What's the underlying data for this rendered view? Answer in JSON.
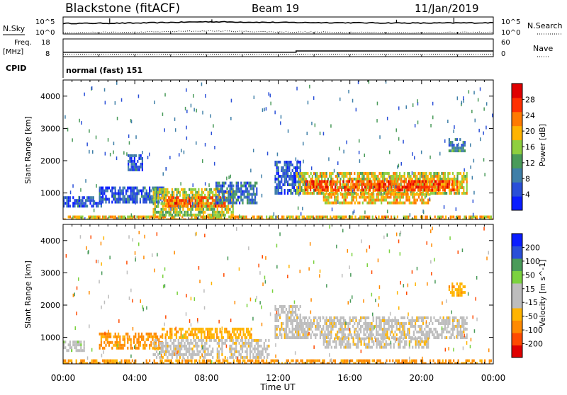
{
  "header": {
    "station": "Blackstone (fitACF)",
    "beam": "Beam 19",
    "date": "11/Jan/2019"
  },
  "top_panels": {
    "nsky_label": "N.Sky",
    "nsearch_label": "N.Search",
    "noise_ticks_left": [
      "10^5",
      "10^0"
    ],
    "noise_ticks_right": [
      "10^5",
      "10^0"
    ],
    "freq_label": "Freq.",
    "freq_unit": "[MHz]",
    "freq_ticks": [
      "18",
      "8"
    ],
    "nave_label": "Nave",
    "nave_ticks": [
      "60",
      "0"
    ],
    "cpid_label": "CPID",
    "cpid_value": "normal (fast) 151"
  },
  "colors": {
    "power_scale": [
      "#0a1dff",
      "#2a4fd8",
      "#3f7fa8",
      "#4a9b5a",
      "#8fcf3f",
      "#ffb400",
      "#ff7a00",
      "#ff3000",
      "#e00000"
    ],
    "velocity_scale": [
      "#e00000",
      "#ff4a00",
      "#ff8a00",
      "#ffb400",
      "#bdbdbd",
      "#bdbdbd",
      "#7bd23f",
      "#4a9b5a",
      "#2a4fd8",
      "#0a1dff"
    ]
  },
  "chart_data": [
    {
      "type": "line",
      "title": "",
      "series": [
        {
          "name": "N.Sky",
          "style": "solid"
        },
        {
          "name": "N.Search",
          "style": "dotted"
        }
      ],
      "x": [
        "00:00",
        "04:00",
        "08:00",
        "12:00",
        "16:00",
        "20:00",
        "00:00"
      ],
      "ylim_log10": [
        0,
        5
      ],
      "y_solid_log10": [
        3.1,
        3.2,
        3.6,
        3.4,
        3.3,
        3.2,
        3.3
      ],
      "y_dotted_log10": [
        0.4,
        0.5,
        0.9,
        0.6,
        0.5,
        0.4,
        0.5
      ]
    },
    {
      "type": "line",
      "series": [
        {
          "name": "Freq.",
          "style": "solid"
        },
        {
          "name": "Nave",
          "style": "dotted"
        }
      ],
      "freq_ylim": [
        8,
        18
      ],
      "nave_ylim": [
        0,
        60
      ],
      "freq_steps": [
        {
          "t": 0,
          "v": 10.5
        },
        {
          "t": 13.0,
          "v": 11.2
        },
        {
          "t": 24,
          "v": 11.2
        }
      ],
      "nave_value": 8
    },
    {
      "type": "heatmap",
      "ylabel": "Slant Range [km]",
      "colorbar_label": "Power [dB]",
      "colorbar_ticks": [
        "28",
        "24",
        "20",
        "16",
        "12",
        "8",
        "4"
      ],
      "y_ticks": [
        "4000",
        "3000",
        "2000",
        "1000"
      ],
      "ylim_km": [
        180,
        4500
      ],
      "xlim_hours": [
        0,
        24
      ],
      "regions": [
        {
          "t0": 0.0,
          "t1": 24.0,
          "r0": 180,
          "r1": 300,
          "power": 20
        },
        {
          "t0": 0.0,
          "t1": 2.2,
          "r0": 550,
          "r1": 900,
          "power": 6
        },
        {
          "t0": 2.0,
          "t1": 5.6,
          "r0": 700,
          "r1": 1200,
          "power": 6
        },
        {
          "t0": 3.6,
          "t1": 4.4,
          "r0": 1700,
          "r1": 2200,
          "power": 6
        },
        {
          "t0": 5.0,
          "t1": 9.5,
          "r0": 350,
          "r1": 1150,
          "power": 16
        },
        {
          "t0": 5.6,
          "t1": 9.0,
          "r0": 550,
          "r1": 900,
          "power": 24
        },
        {
          "t0": 8.5,
          "t1": 10.8,
          "r0": 700,
          "r1": 1350,
          "power": 8
        },
        {
          "t0": 11.8,
          "t1": 13.2,
          "r0": 1000,
          "r1": 2000,
          "power": 6
        },
        {
          "t0": 13.0,
          "t1": 22.5,
          "r0": 950,
          "r1": 1650,
          "power": 18
        },
        {
          "t0": 13.5,
          "t1": 22.0,
          "r0": 1050,
          "r1": 1400,
          "power": 26
        },
        {
          "t0": 14.5,
          "t1": 20.5,
          "r0": 700,
          "r1": 1000,
          "power": 20
        },
        {
          "t0": 21.5,
          "t1": 22.4,
          "r0": 2300,
          "r1": 2700,
          "power": 10
        }
      ]
    },
    {
      "type": "heatmap",
      "ylabel": "Slant Range [km]",
      "colorbar_label": "Velocity [m s^-1]",
      "colorbar_ticks": [
        "200",
        "100",
        "50",
        "15",
        "-15",
        "-50",
        "-100",
        "-200"
      ],
      "y_ticks": [
        "4000",
        "3000",
        "2000",
        "1000"
      ],
      "ylim_km": [
        180,
        4500
      ],
      "xlim_hours": [
        0,
        24
      ],
      "x_ticks": [
        "00:00",
        "04:00",
        "08:00",
        "12:00",
        "16:00",
        "20:00",
        "00:00"
      ],
      "xlabel": "Time UT",
      "regions": [
        {
          "t0": 0.0,
          "t1": 24.0,
          "r0": 180,
          "r1": 320,
          "velocity": -60
        },
        {
          "t0": 0.0,
          "t1": 1.2,
          "r0": 550,
          "r1": 900,
          "velocity": 40
        },
        {
          "t0": 2.0,
          "t1": 5.5,
          "r0": 700,
          "r1": 1150,
          "velocity": -60
        },
        {
          "t0": 5.0,
          "t1": 11.5,
          "r0": 400,
          "r1": 950,
          "velocity": 0
        },
        {
          "t0": 5.5,
          "t1": 10.5,
          "r0": 950,
          "r1": 1300,
          "velocity": -40
        },
        {
          "t0": 11.8,
          "t1": 13.2,
          "r0": 1000,
          "r1": 2000,
          "velocity": 0
        },
        {
          "t0": 13.0,
          "t1": 22.5,
          "r0": 950,
          "r1": 1650,
          "velocity": 0
        },
        {
          "t0": 14.5,
          "t1": 20.5,
          "r0": 700,
          "r1": 1000,
          "velocity": 0
        },
        {
          "t0": 21.5,
          "t1": 22.4,
          "r0": 2300,
          "r1": 2700,
          "velocity": -40
        }
      ]
    }
  ]
}
